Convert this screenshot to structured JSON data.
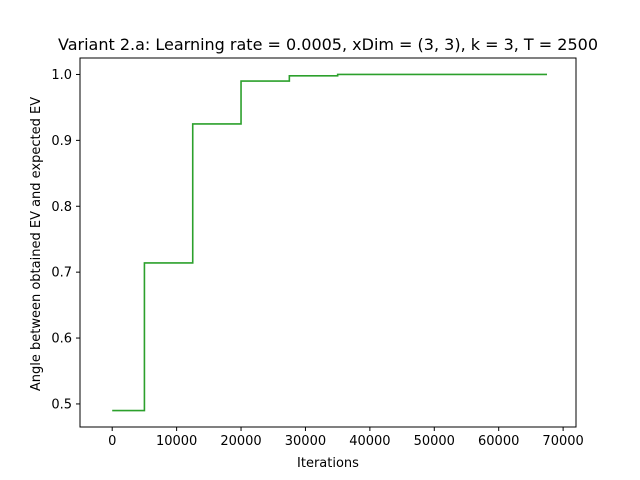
{
  "chart_data": {
    "type": "line",
    "title": "Variant 2.a: Learning rate = 0.0005, xDim = (3, 3), k = 3, T = 2500",
    "xlabel": "Iterations",
    "ylabel": "Angle between obtained EV and expected EV",
    "xlim": [
      -5000,
      72000
    ],
    "ylim": [
      0.465,
      1.025
    ],
    "xticks": [
      0,
      10000,
      20000,
      30000,
      40000,
      50000,
      60000,
      70000
    ],
    "yticks": [
      0.5,
      0.6,
      0.7,
      0.8,
      0.9,
      1.0
    ],
    "xtick_labels": [
      "0",
      "10000",
      "20000",
      "30000",
      "40000",
      "50000",
      "60000",
      "70000"
    ],
    "ytick_labels": [
      "0.5",
      "0.6",
      "0.7",
      "0.8",
      "0.9",
      "1.0"
    ],
    "grid": false,
    "series": [
      {
        "name": "angle",
        "color": "#2ca02c",
        "x": [
          0,
          5000,
          5000,
          12500,
          12500,
          20000,
          20000,
          27500,
          27500,
          35000,
          35000,
          67500
        ],
        "y": [
          0.49,
          0.49,
          0.714,
          0.714,
          0.925,
          0.925,
          0.99,
          0.99,
          0.998,
          0.998,
          1.0,
          1.0
        ]
      }
    ]
  }
}
